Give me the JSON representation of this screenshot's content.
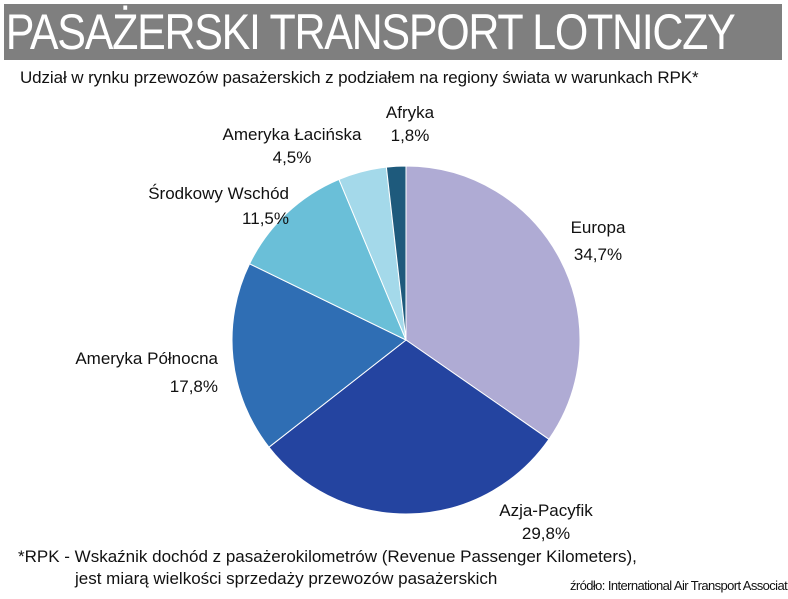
{
  "header": {
    "title": "PASAŻERSKI TRANSPORT LOTNICZY",
    "subtitle": "Udział w rynku przewozów pasażerskich z podziałem na regiony świata w warunkach RPK*"
  },
  "chart_data": {
    "type": "pie",
    "title": "PASAŻERSKI TRANSPORT LOTNICZY",
    "subtitle": "Udział w rynku przewozów pasażerskich z podziałem na regiony świata w warunkach RPK*",
    "categories": [
      "Europa",
      "Azja-Pacyfik",
      "Ameryka Północna",
      "Środkowy Wschód",
      "Ameryka Łacińska",
      "Afryka"
    ],
    "values": [
      34.7,
      29.8,
      17.8,
      11.5,
      4.5,
      1.8
    ],
    "value_labels": [
      "34,7%",
      "29,8%",
      "17,8%",
      "11,5%",
      "4,5%",
      "1,8%"
    ],
    "colors": [
      "#afabd4",
      "#2444a0",
      "#2f6eb4",
      "#6abfd8",
      "#a4d9ea",
      "#1e5a7c"
    ],
    "start": "12 o'clock",
    "direction": "clockwise",
    "legend": "none"
  },
  "footnote": {
    "line1": "*RPK - Wskaźnik dochód z pasażerokilometrów (Revenue Passenger Kilometers),",
    "line2": "jest miarą wielkości sprzedaży przewozów pasażerskich"
  },
  "source": "źródło: International Air Transport Association"
}
